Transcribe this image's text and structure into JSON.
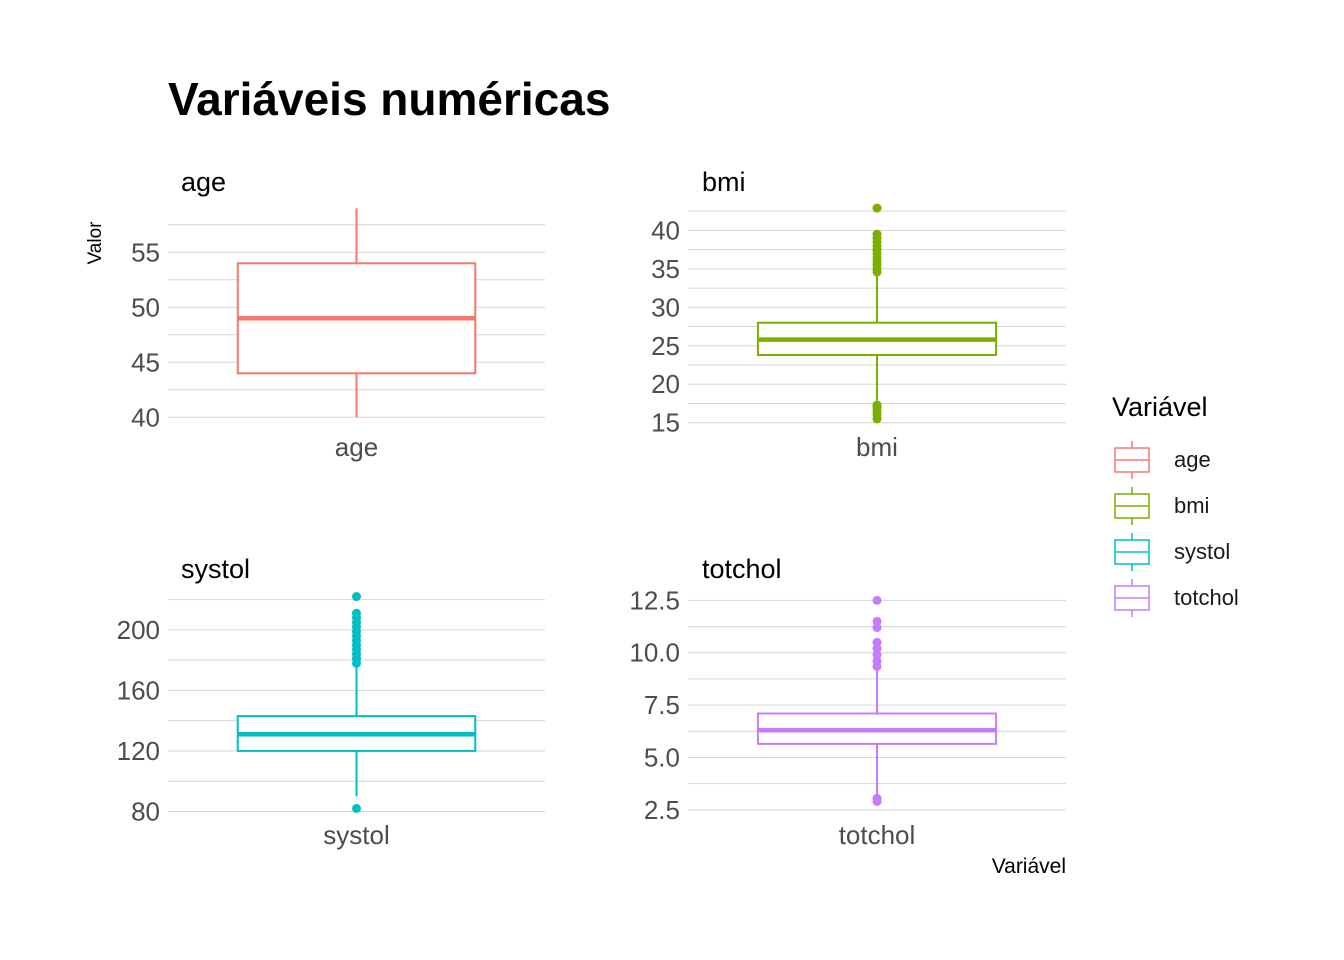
{
  "title": "Variáveis numéricas",
  "y_axis_label": "Valor",
  "x_axis_label": "Variável",
  "legend": {
    "title": "Variável",
    "items": [
      {
        "label": "age",
        "color": "#F8766D"
      },
      {
        "label": "bmi",
        "color": "#7CAE00"
      },
      {
        "label": "systol",
        "color": "#00BFC4"
      },
      {
        "label": "totchol",
        "color": "#C77CFF"
      }
    ]
  },
  "chart_data": [
    {
      "type": "boxplot",
      "title": "age",
      "category": "age",
      "color": "#F8766D",
      "ylim": [
        39.3,
        59.3
      ],
      "yticks": [
        {
          "v": 40,
          "label": "40"
        },
        {
          "v": 45,
          "label": "45"
        },
        {
          "v": 50,
          "label": "50"
        },
        {
          "v": 55,
          "label": "55"
        }
      ],
      "whisker_low": 40,
      "q1": 44,
      "median": 49,
      "q3": 54,
      "whisker_high": 59,
      "outliers": []
    },
    {
      "type": "boxplot",
      "title": "bmi",
      "category": "bmi",
      "color": "#7CAE00",
      "ylim": [
        14.7,
        43.3
      ],
      "yticks": [
        {
          "v": 15,
          "label": "15"
        },
        {
          "v": 20,
          "label": "20"
        },
        {
          "v": 25,
          "label": "25"
        },
        {
          "v": 30,
          "label": "30"
        },
        {
          "v": 35,
          "label": "35"
        },
        {
          "v": 40,
          "label": "40"
        }
      ],
      "whisker_low": 17.9,
      "q1": 23.8,
      "median": 25.8,
      "q3": 28.0,
      "whisker_high": 34.3,
      "outliers": [
        15.5,
        16.0,
        16.5,
        17.0,
        17.3,
        34.6,
        35.0,
        35.5,
        36.0,
        36.5,
        37.0,
        37.5,
        38.0,
        38.5,
        39.0,
        39.5,
        42.9
      ]
    },
    {
      "type": "boxplot",
      "title": "systol",
      "category": "systol",
      "color": "#00BFC4",
      "ylim": [
        79,
        225
      ],
      "yticks": [
        {
          "v": 80,
          "label": "80"
        },
        {
          "v": 120,
          "label": "120"
        },
        {
          "v": 160,
          "label": "160"
        },
        {
          "v": 200,
          "label": "200"
        }
      ],
      "whisker_low": 90,
      "q1": 120,
      "median": 131,
      "q3": 143,
      "whisker_high": 176,
      "outliers": [
        82,
        178,
        181,
        184,
        187,
        190,
        193,
        196,
        199,
        202,
        205,
        208,
        211,
        222
      ]
    },
    {
      "type": "boxplot",
      "title": "totchol",
      "category": "totchol",
      "color": "#C77CFF",
      "ylim": [
        2.35,
        12.9
      ],
      "yticks": [
        {
          "v": 2.5,
          "label": "2.5"
        },
        {
          "v": 5.0,
          "label": "5.0"
        },
        {
          "v": 7.5,
          "label": "7.5"
        },
        {
          "v": 10.0,
          "label": "10.0"
        },
        {
          "v": 12.5,
          "label": "12.5"
        }
      ],
      "whisker_low": 3.2,
      "q1": 5.65,
      "median": 6.3,
      "q3": 7.1,
      "whisker_high": 9.2,
      "outliers": [
        2.9,
        3.05,
        9.35,
        9.6,
        9.9,
        10.2,
        10.5,
        11.2,
        11.5,
        12.5
      ]
    }
  ]
}
